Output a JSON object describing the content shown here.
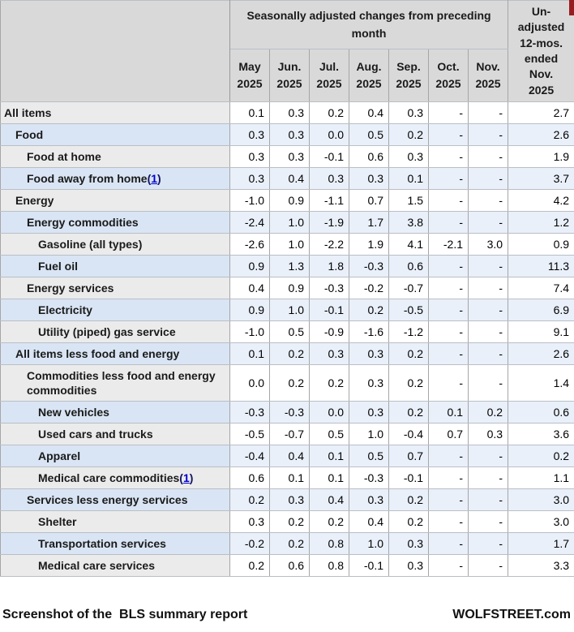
{
  "colors": {
    "header_bg": "#d9d9d9",
    "label_cell_bg": "#ebebeb",
    "stripe_label_bg": "#d9e5f4",
    "stripe_value_bg": "#e9f0fa",
    "grid_line": "#a6a6a6",
    "link_blue": "#0000cc",
    "scroll_thumb_red": "#981d20"
  },
  "header": {
    "group_title": "Seasonally adjusted changes from preceding month",
    "months": [
      {
        "month": "May",
        "year": "2025"
      },
      {
        "month": "Jun.",
        "year": "2025"
      },
      {
        "month": "Jul.",
        "year": "2025"
      },
      {
        "month": "Aug.",
        "year": "2025"
      },
      {
        "month": "Sep.",
        "year": "2025"
      },
      {
        "month": "Oct.",
        "year": "2025"
      },
      {
        "month": "Nov.",
        "year": "2025"
      }
    ],
    "unadjusted_label": "Un-\nadjusted\n12-mos.\nended\nNov.\n2025"
  },
  "rows": [
    {
      "label": "All items",
      "indent": 0,
      "shaded": false,
      "values": [
        "0.1",
        "0.3",
        "0.2",
        "0.4",
        "0.3",
        "-",
        "-",
        "2.7"
      ]
    },
    {
      "label": "Food",
      "indent": 1,
      "shaded": true,
      "values": [
        "0.3",
        "0.3",
        "0.0",
        "0.5",
        "0.2",
        "-",
        "-",
        "2.6"
      ]
    },
    {
      "label": "Food at home",
      "indent": 2,
      "shaded": false,
      "values": [
        "0.3",
        "0.3",
        "-0.1",
        "0.6",
        "0.3",
        "-",
        "-",
        "1.9"
      ]
    },
    {
      "label": "Food away from home",
      "footnote": "1",
      "indent": 2,
      "shaded": true,
      "values": [
        "0.3",
        "0.4",
        "0.3",
        "0.3",
        "0.1",
        "-",
        "-",
        "3.7"
      ]
    },
    {
      "label": "Energy",
      "indent": 1,
      "shaded": false,
      "values": [
        "-1.0",
        "0.9",
        "-1.1",
        "0.7",
        "1.5",
        "-",
        "-",
        "4.2"
      ]
    },
    {
      "label": "Energy commodities",
      "indent": 2,
      "shaded": true,
      "values": [
        "-2.4",
        "1.0",
        "-1.9",
        "1.7",
        "3.8",
        "-",
        "-",
        "1.2"
      ]
    },
    {
      "label": "Gasoline (all types)",
      "indent": 3,
      "shaded": false,
      "values": [
        "-2.6",
        "1.0",
        "-2.2",
        "1.9",
        "4.1",
        "-2.1",
        "3.0",
        "0.9"
      ]
    },
    {
      "label": "Fuel oil",
      "indent": 3,
      "shaded": true,
      "values": [
        "0.9",
        "1.3",
        "1.8",
        "-0.3",
        "0.6",
        "-",
        "-",
        "11.3"
      ]
    },
    {
      "label": "Energy services",
      "indent": 2,
      "shaded": false,
      "values": [
        "0.4",
        "0.9",
        "-0.3",
        "-0.2",
        "-0.7",
        "-",
        "-",
        "7.4"
      ]
    },
    {
      "label": "Electricity",
      "indent": 3,
      "shaded": true,
      "values": [
        "0.9",
        "1.0",
        "-0.1",
        "0.2",
        "-0.5",
        "-",
        "-",
        "6.9"
      ]
    },
    {
      "label": "Utility (piped) gas service",
      "indent": 3,
      "shaded": false,
      "values": [
        "-1.0",
        "0.5",
        "-0.9",
        "-1.6",
        "-1.2",
        "-",
        "-",
        "9.1"
      ]
    },
    {
      "label": "All items less food and energy",
      "indent": 1,
      "shaded": true,
      "values": [
        "0.1",
        "0.2",
        "0.3",
        "0.3",
        "0.2",
        "-",
        "-",
        "2.6"
      ]
    },
    {
      "label": "Commodities less food and energy commodities",
      "indent": 2,
      "shaded": false,
      "tall": true,
      "values": [
        "0.0",
        "0.2",
        "0.2",
        "0.3",
        "0.2",
        "-",
        "-",
        "1.4"
      ]
    },
    {
      "label": "New vehicles",
      "indent": 3,
      "shaded": true,
      "values": [
        "-0.3",
        "-0.3",
        "0.0",
        "0.3",
        "0.2",
        "0.1",
        "0.2",
        "0.6"
      ]
    },
    {
      "label": "Used cars and trucks",
      "indent": 3,
      "shaded": false,
      "values": [
        "-0.5",
        "-0.7",
        "0.5",
        "1.0",
        "-0.4",
        "0.7",
        "0.3",
        "3.6"
      ]
    },
    {
      "label": "Apparel",
      "indent": 3,
      "shaded": true,
      "values": [
        "-0.4",
        "0.4",
        "0.1",
        "0.5",
        "0.7",
        "-",
        "-",
        "0.2"
      ]
    },
    {
      "label": "Medical care commodities",
      "footnote": "1",
      "indent": 3,
      "shaded": false,
      "values": [
        "0.6",
        "0.1",
        "0.1",
        "-0.3",
        "-0.1",
        "-",
        "-",
        "1.1"
      ]
    },
    {
      "label": "Services less energy services",
      "indent": 2,
      "shaded": true,
      "values": [
        "0.2",
        "0.3",
        "0.4",
        "0.3",
        "0.2",
        "-",
        "-",
        "3.0"
      ]
    },
    {
      "label": "Shelter",
      "indent": 3,
      "shaded": false,
      "values": [
        "0.3",
        "0.2",
        "0.2",
        "0.4",
        "0.2",
        "-",
        "-",
        "3.0"
      ]
    },
    {
      "label": "Transportation services",
      "indent": 3,
      "shaded": true,
      "values": [
        "-0.2",
        "0.2",
        "0.8",
        "1.0",
        "0.3",
        "-",
        "-",
        "1.7"
      ]
    },
    {
      "label": "Medical care services",
      "indent": 3,
      "shaded": false,
      "values": [
        "0.2",
        "0.6",
        "0.8",
        "-0.1",
        "0.3",
        "-",
        "-",
        "3.3"
      ]
    }
  ],
  "footer": {
    "left": "Screenshot of the  BLS summary report",
    "right": "WOLFSTREET.com"
  }
}
